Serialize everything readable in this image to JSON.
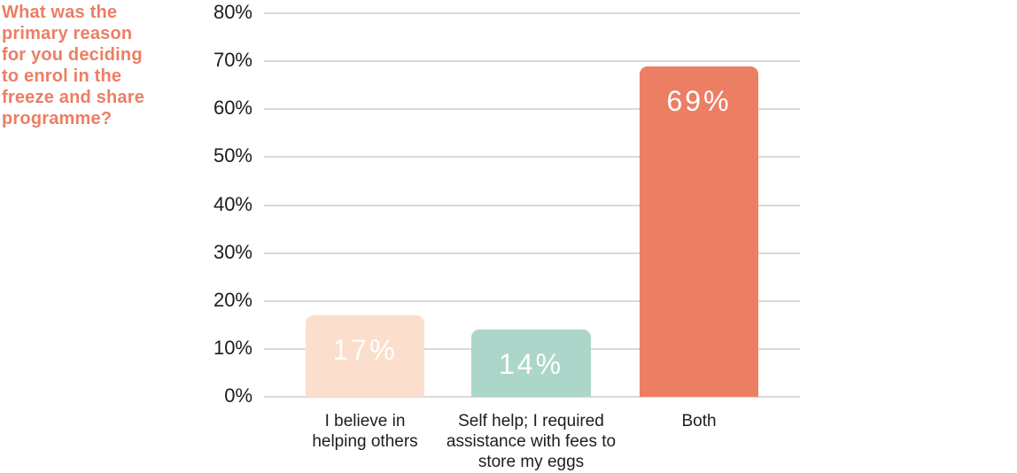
{
  "chart_data": {
    "type": "bar",
    "title": "What was the primary reason for you deciding to enrol in the freeze and share programme?",
    "categories": [
      "I believe in helping others",
      "Self help; I required assistance with fees to store my eggs",
      "Both"
    ],
    "values": [
      17,
      14,
      69
    ],
    "value_labels": [
      "17%",
      "14%",
      "69%"
    ],
    "bar_colors": [
      "#FBDECB",
      "#ACD6C9",
      "#EC7E64"
    ],
    "value_label_color": "#ffffff",
    "xlabel": "",
    "ylabel": "",
    "ylim": [
      0,
      80
    ],
    "ytick_step": 10,
    "yticks": [
      "0%",
      "10%",
      "20%",
      "30%",
      "40%",
      "50%",
      "60%",
      "70%",
      "80%"
    ],
    "grid": "horizontal",
    "gridline_color": "#D9D9D9",
    "axis_text_color": "#1d1d1b",
    "title_color": "#EC7E64",
    "legend": "none"
  }
}
